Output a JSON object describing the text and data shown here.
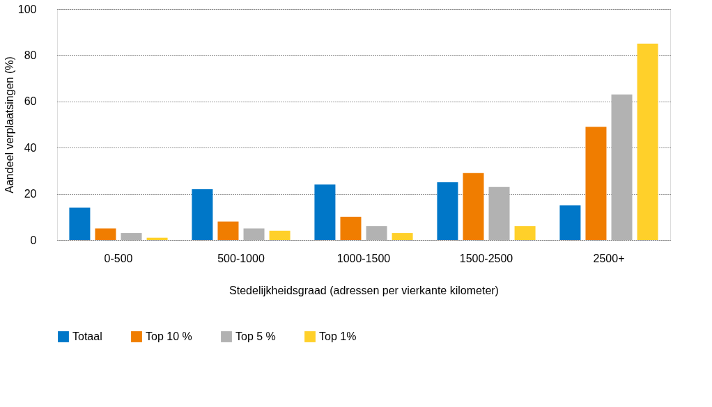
{
  "chart_data": {
    "type": "bar",
    "xlabel": "Stedelijkheidsgraad (adressen per vierkante kilometer)",
    "ylabel": "Aandeel verplaatsingen (%)",
    "categories": [
      "0-500",
      "500-1000",
      "1000-1500",
      "1500-2500",
      "2500+"
    ],
    "series": [
      {
        "name": "Totaal",
        "color": "#0077c8",
        "values": [
          14,
          22,
          24,
          25,
          15
        ]
      },
      {
        "name": "Top 10 %",
        "color": "#f07d00",
        "values": [
          5,
          8,
          10,
          29,
          49
        ]
      },
      {
        "name": "Top 5 %",
        "color": "#b2b2b2",
        "values": [
          3,
          5,
          6,
          23,
          63
        ]
      },
      {
        "name": "Top 1%",
        "color": "#ffd02a",
        "values": [
          1,
          4,
          3,
          6,
          85
        ]
      }
    ],
    "ylim": [
      0,
      100
    ],
    "yticks": [
      0,
      20,
      40,
      60,
      80,
      100
    ],
    "grid": "y",
    "legend": "bottom"
  }
}
